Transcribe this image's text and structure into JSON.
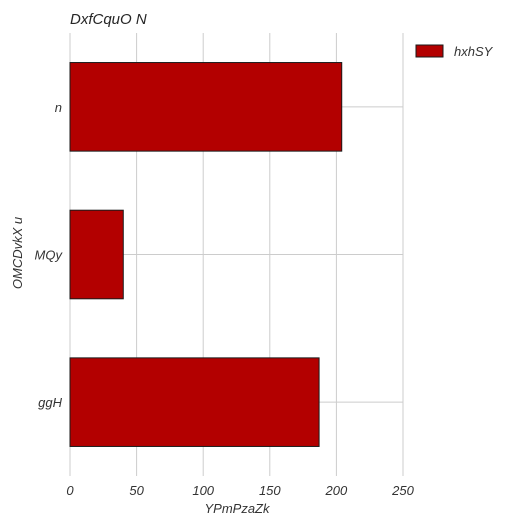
{
  "chart_data": {
    "type": "bar",
    "orientation": "horizontal",
    "title": "DxfCquO N",
    "xlabel": "YPmPzaZk",
    "ylabel": "OMCDvkX u",
    "categories": [
      "n",
      "MQy",
      "ggH"
    ],
    "series": [
      {
        "name": "hxhSY",
        "values": [
          204,
          40,
          187
        ]
      }
    ],
    "xlim": [
      0,
      250
    ],
    "xticks": [
      0,
      50,
      100,
      150,
      200,
      250
    ],
    "grid": true,
    "legend": "outside-top-right",
    "colors": {
      "bar": "#b30000",
      "edge": "#1a1a1a",
      "grid": "#cccccc"
    }
  }
}
